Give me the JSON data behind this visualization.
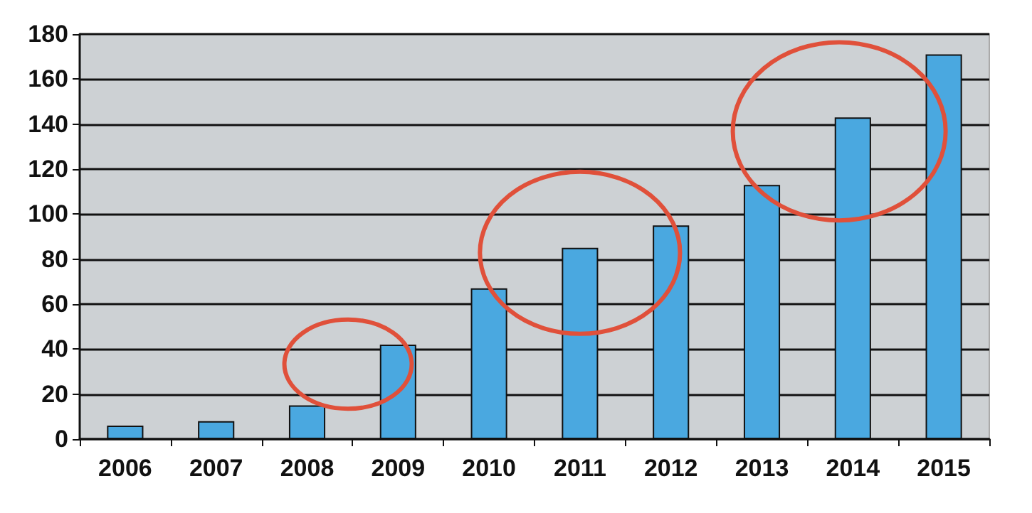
{
  "chart_data": {
    "type": "bar",
    "categories": [
      "2006",
      "2007",
      "2008",
      "2009",
      "2010",
      "2011",
      "2012",
      "2013",
      "2014",
      "2015"
    ],
    "values": [
      6,
      8,
      15,
      42,
      67,
      85,
      95,
      113,
      143,
      171
    ],
    "color": "#4aa8e0",
    "ylim": [
      0,
      180
    ],
    "yticks": [
      0,
      20,
      40,
      60,
      80,
      100,
      120,
      140,
      160,
      180
    ],
    "grid": "y"
  }
}
